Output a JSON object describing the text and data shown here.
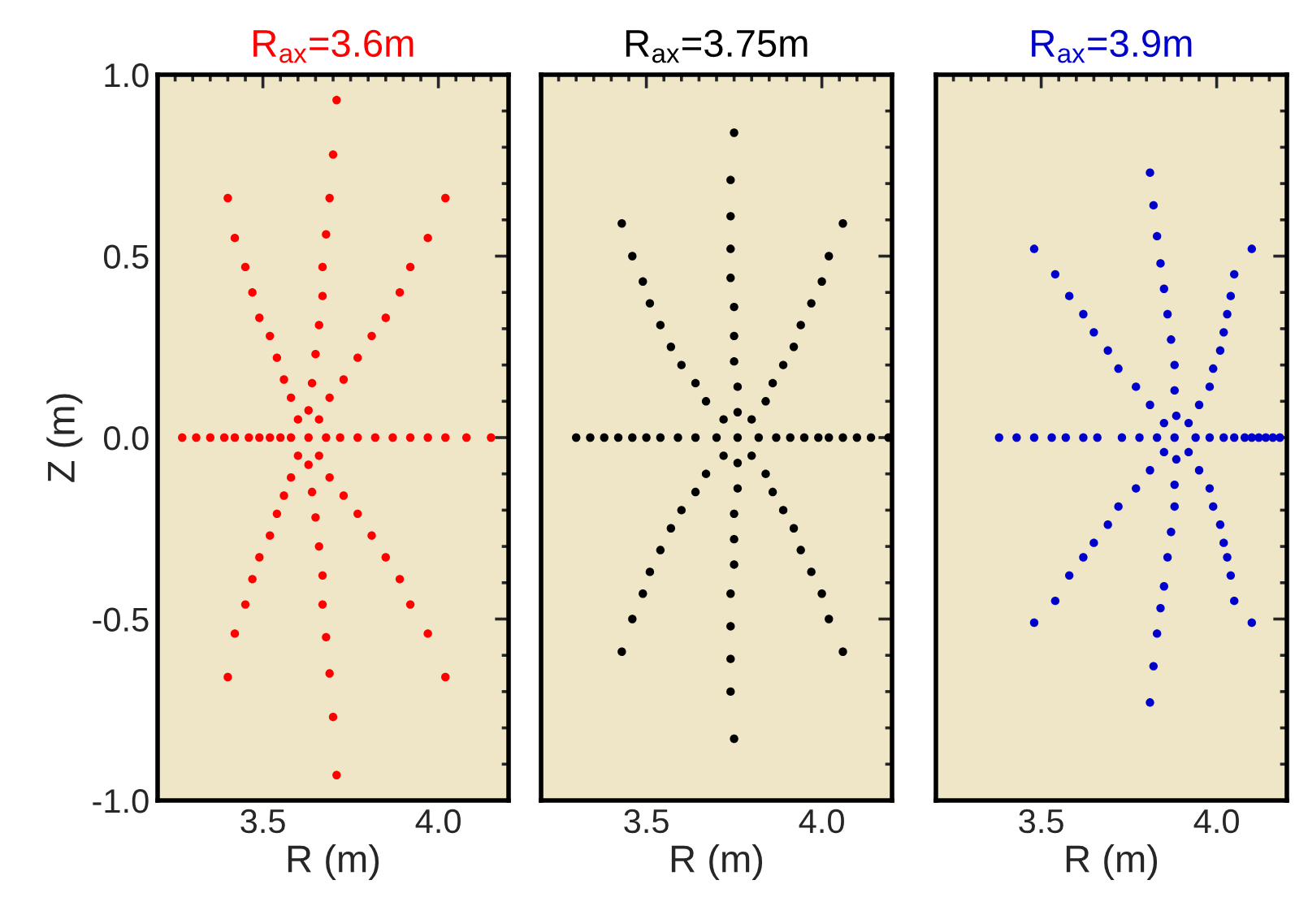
{
  "chart_data": [
    {
      "type": "scatter",
      "title": "R$_{ax}$=3.6m",
      "xlabel": "R (m)",
      "ylabel": "Z (m)",
      "marker": "circle",
      "xlim": [
        3.2,
        4.2
      ],
      "ylim": [
        -1.0,
        1.0
      ],
      "xticks": [
        {
          "value": 3.2,
          "label": null
        },
        {
          "value": 3.25,
          "label": null
        },
        {
          "value": 3.3,
          "label": null
        },
        {
          "value": 3.35,
          "label": null
        },
        {
          "value": 3.4,
          "label": null
        },
        {
          "value": 3.45,
          "label": null
        },
        {
          "value": 3.5,
          "label": "3.5"
        },
        {
          "value": 3.55,
          "label": null
        },
        {
          "value": 3.6,
          "label": null
        },
        {
          "value": 3.65,
          "label": null
        },
        {
          "value": 3.7,
          "label": null
        },
        {
          "value": 3.75,
          "label": null
        },
        {
          "value": 3.8,
          "label": null
        },
        {
          "value": 3.85,
          "label": null
        },
        {
          "value": 3.9,
          "label": null
        },
        {
          "value": 3.95,
          "label": null
        },
        {
          "value": 4.0,
          "label": "4.0"
        },
        {
          "value": 4.05,
          "label": null
        },
        {
          "value": 4.1,
          "label": null
        },
        {
          "value": 4.15,
          "label": null
        }
      ],
      "yticks": [
        {
          "value": -1.0,
          "label": "-1.0"
        },
        {
          "value": -0.9,
          "label": null
        },
        {
          "value": -0.8,
          "label": null
        },
        {
          "value": -0.7,
          "label": null
        },
        {
          "value": -0.6,
          "label": null
        },
        {
          "value": -0.5,
          "label": "-0.5"
        },
        {
          "value": -0.4,
          "label": null
        },
        {
          "value": -0.3,
          "label": null
        },
        {
          "value": -0.2,
          "label": null
        },
        {
          "value": -0.1,
          "label": null
        },
        {
          "value": 0.0,
          "label": "0.0"
        },
        {
          "value": 0.1,
          "label": null
        },
        {
          "value": 0.2,
          "label": null
        },
        {
          "value": 0.3,
          "label": null
        },
        {
          "value": 0.4,
          "label": null
        },
        {
          "value": 0.5,
          "label": "0.5"
        },
        {
          "value": 0.6,
          "label": null
        },
        {
          "value": 0.7,
          "label": null
        },
        {
          "value": 0.8,
          "label": null
        },
        {
          "value": 0.9,
          "label": null
        },
        {
          "value": 1.0,
          "label": "1.0"
        }
      ],
      "series": [
        {
          "color": "#ff0000",
          "x": [
            3.27,
            3.4,
            3.71,
            4.02,
            4.15,
            4.02,
            3.71,
            3.4,
            3.31,
            3.42,
            3.7,
            3.97,
            4.08,
            3.97,
            3.7,
            3.42,
            3.35,
            3.45,
            3.69,
            3.92,
            4.02,
            3.92,
            3.69,
            3.45,
            3.39,
            3.47,
            3.68,
            3.89,
            3.97,
            3.89,
            3.68,
            3.47,
            3.42,
            3.49,
            3.67,
            3.85,
            3.92,
            3.85,
            3.67,
            3.49,
            3.46,
            3.52,
            3.67,
            3.81,
            3.87,
            3.81,
            3.67,
            3.52,
            3.49,
            3.54,
            3.66,
            3.77,
            3.82,
            3.77,
            3.66,
            3.54,
            3.52,
            3.56,
            3.65,
            3.73,
            3.77,
            3.73,
            3.65,
            3.56,
            3.55,
            3.58,
            3.64,
            3.69,
            3.72,
            3.69,
            3.64,
            3.58,
            3.58,
            3.6,
            3.63,
            3.66,
            3.68,
            3.66,
            3.63,
            3.6,
            3.63
          ],
          "values": [
            0,
            0.66,
            0.93,
            0.66,
            0,
            -0.66,
            -0.93,
            -0.66,
            0,
            0.55,
            0.78,
            0.55,
            0,
            -0.54,
            -0.77,
            -0.54,
            0,
            0.47,
            0.66,
            0.47,
            0,
            -0.46,
            -0.65,
            -0.46,
            0,
            0.4,
            0.56,
            0.4,
            0,
            -0.39,
            -0.55,
            -0.39,
            0,
            0.33,
            0.47,
            0.33,
            0,
            -0.33,
            -0.46,
            -0.33,
            0,
            0.28,
            0.39,
            0.28,
            0,
            -0.27,
            -0.38,
            -0.27,
            0,
            0.22,
            0.31,
            0.22,
            0,
            -0.21,
            -0.3,
            -0.21,
            0,
            0.16,
            0.23,
            0.16,
            0,
            -0.16,
            -0.22,
            -0.16,
            0,
            0.11,
            0.15,
            0.11,
            0,
            -0.11,
            -0.15,
            -0.11,
            0,
            0.05,
            0.075,
            0.05,
            0,
            -0.05,
            -0.075,
            -0.05,
            0
          ]
        }
      ]
    },
    {
      "type": "scatter",
      "title": "R$_{ax}$=3.75m",
      "xlabel": "R (m)",
      "marker": "circle",
      "tick_labels": "x",
      "xlim": [
        3.2,
        4.2
      ],
      "ylim": [
        -1.0,
        1.0
      ],
      "xticks": [
        {
          "value": 3.2,
          "label": null
        },
        {
          "value": 3.25,
          "label": null
        },
        {
          "value": 3.3,
          "label": null
        },
        {
          "value": 3.35,
          "label": null
        },
        {
          "value": 3.4,
          "label": null
        },
        {
          "value": 3.45,
          "label": null
        },
        {
          "value": 3.5,
          "label": "3.5"
        },
        {
          "value": 3.55,
          "label": null
        },
        {
          "value": 3.6,
          "label": null
        },
        {
          "value": 3.65,
          "label": null
        },
        {
          "value": 3.7,
          "label": null
        },
        {
          "value": 3.75,
          "label": null
        },
        {
          "value": 3.8,
          "label": null
        },
        {
          "value": 3.85,
          "label": null
        },
        {
          "value": 3.9,
          "label": null
        },
        {
          "value": 3.95,
          "label": null
        },
        {
          "value": 4.0,
          "label": "4.0"
        },
        {
          "value": 4.05,
          "label": null
        },
        {
          "value": 4.1,
          "label": null
        },
        {
          "value": 4.15,
          "label": null
        }
      ],
      "yticks": [
        -1.0,
        {
          "value": -0.9,
          "label": null
        },
        {
          "value": -0.8,
          "label": null
        },
        {
          "value": -0.7,
          "label": null
        },
        {
          "value": -0.6,
          "label": null
        },
        -0.5,
        {
          "value": -0.4,
          "label": null
        },
        {
          "value": -0.3,
          "label": null
        },
        {
          "value": -0.2,
          "label": null
        },
        {
          "value": -0.1,
          "label": null
        },
        0.0,
        {
          "value": 0.1,
          "label": null
        },
        {
          "value": 0.2,
          "label": null
        },
        {
          "value": 0.3,
          "label": null
        },
        {
          "value": 0.4,
          "label": null
        },
        0.5,
        {
          "value": 0.6,
          "label": null
        },
        {
          "value": 0.7,
          "label": null
        },
        {
          "value": 0.8,
          "label": null
        },
        {
          "value": 0.9,
          "label": null
        },
        1.0
      ],
      "series": [
        {
          "color": "#000000",
          "x": [
            3.3,
            3.43,
            3.75,
            4.06,
            4.19,
            4.06,
            3.75,
            3.43,
            3.34,
            3.46,
            3.74,
            4.02,
            4.14,
            4.02,
            3.74,
            3.46,
            3.38,
            3.49,
            3.74,
            4.0,
            4.1,
            4.0,
            3.74,
            3.49,
            3.42,
            3.51,
            3.74,
            3.97,
            4.06,
            3.97,
            3.74,
            3.51,
            3.46,
            3.54,
            3.74,
            3.94,
            4.02,
            3.94,
            3.74,
            3.54,
            3.5,
            3.57,
            3.75,
            3.92,
            3.99,
            3.92,
            3.75,
            3.57,
            3.54,
            3.6,
            3.75,
            3.89,
            3.95,
            3.89,
            3.75,
            3.6,
            3.59,
            3.64,
            3.75,
            3.86,
            3.91,
            3.86,
            3.75,
            3.64,
            3.64,
            3.67,
            3.76,
            3.84,
            3.87,
            3.84,
            3.76,
            3.67,
            3.7,
            3.72,
            3.76,
            3.8,
            3.82,
            3.8,
            3.76,
            3.72,
            3.76
          ],
          "values": [
            0,
            0.59,
            0.84,
            0.59,
            0,
            -0.59,
            -0.83,
            -0.59,
            0,
            0.5,
            0.71,
            0.5,
            0,
            -0.5,
            -0.7,
            -0.5,
            0,
            0.43,
            0.61,
            0.43,
            0,
            -0.43,
            -0.61,
            -0.43,
            0,
            0.37,
            0.52,
            0.37,
            0,
            -0.37,
            -0.52,
            -0.37,
            0,
            0.31,
            0.44,
            0.31,
            0,
            -0.31,
            -0.43,
            -0.31,
            0,
            0.25,
            0.36,
            0.25,
            0,
            -0.25,
            -0.35,
            -0.25,
            0,
            0.2,
            0.28,
            0.2,
            0,
            -0.2,
            -0.28,
            -0.2,
            0,
            0.15,
            0.21,
            0.15,
            0,
            -0.15,
            -0.21,
            -0.15,
            0,
            0.1,
            0.14,
            0.1,
            0,
            -0.1,
            -0.14,
            -0.1,
            0,
            0.05,
            0.07,
            0.05,
            0,
            -0.05,
            -0.07,
            -0.05,
            0
          ]
        }
      ]
    },
    {
      "type": "scatter",
      "title": "R$_{ax}$=3.9m",
      "xlabel": "R (m)",
      "marker": "circle",
      "tick_labels": "x",
      "xlim": [
        3.2,
        4.2
      ],
      "ylim": [
        -1.0,
        1.0
      ],
      "xticks": [
        {
          "value": 3.2,
          "label": null
        },
        {
          "value": 3.25,
          "label": null
        },
        {
          "value": 3.3,
          "label": null
        },
        {
          "value": 3.35,
          "label": null
        },
        {
          "value": 3.4,
          "label": null
        },
        {
          "value": 3.45,
          "label": null
        },
        {
          "value": 3.5,
          "label": "3.5"
        },
        {
          "value": 3.55,
          "label": null
        },
        {
          "value": 3.6,
          "label": null
        },
        {
          "value": 3.65,
          "label": null
        },
        {
          "value": 3.7,
          "label": null
        },
        {
          "value": 3.75,
          "label": null
        },
        {
          "value": 3.8,
          "label": null
        },
        {
          "value": 3.85,
          "label": null
        },
        {
          "value": 3.9,
          "label": null
        },
        {
          "value": 3.95,
          "label": null
        },
        {
          "value": 4.0,
          "label": "4.0"
        },
        {
          "value": 4.05,
          "label": null
        },
        {
          "value": 4.1,
          "label": null
        },
        {
          "value": 4.15,
          "label": null
        }
      ],
      "yticks": [
        -1.0,
        {
          "value": -0.9,
          "label": null
        },
        {
          "value": -0.8,
          "label": null
        },
        {
          "value": -0.7,
          "label": null
        },
        {
          "value": -0.6,
          "label": null
        },
        -0.5,
        {
          "value": -0.4,
          "label": null
        },
        {
          "value": -0.3,
          "label": null
        },
        {
          "value": -0.2,
          "label": null
        },
        {
          "value": -0.1,
          "label": null
        },
        0.0,
        {
          "value": 0.1,
          "label": null
        },
        {
          "value": 0.2,
          "label": null
        },
        {
          "value": 0.3,
          "label": null
        },
        {
          "value": 0.4,
          "label": null
        },
        0.5,
        {
          "value": 0.6,
          "label": null
        },
        {
          "value": 0.7,
          "label": null
        },
        {
          "value": 0.8,
          "label": null
        },
        {
          "value": 0.9,
          "label": null
        },
        1.0
      ],
      "series": [
        {
          "color": "#0000cc",
          "x": [
            3.38,
            3.48,
            3.81,
            4.1,
            4.18,
            4.1,
            3.81,
            3.48,
            3.43,
            3.54,
            3.82,
            4.05,
            4.16,
            4.05,
            3.82,
            3.54,
            3.48,
            3.58,
            3.83,
            4.04,
            4.14,
            4.04,
            3.83,
            3.58,
            3.53,
            3.62,
            3.84,
            4.03,
            4.12,
            4.03,
            3.84,
            3.62,
            3.57,
            3.65,
            3.85,
            4.02,
            4.1,
            4.02,
            3.85,
            3.65,
            3.62,
            3.69,
            3.86,
            4.01,
            4.08,
            4.01,
            3.86,
            3.69,
            3.66,
            3.72,
            3.87,
            3.99,
            4.05,
            3.99,
            3.87,
            3.72,
            3.73,
            3.77,
            3.88,
            3.98,
            4.02,
            3.98,
            3.88,
            3.77,
            3.78,
            3.81,
            3.88,
            3.95,
            3.98,
            3.95,
            3.88,
            3.81,
            3.83,
            3.85,
            3.885,
            3.92,
            3.94,
            3.92,
            3.885,
            3.85,
            3.88
          ],
          "values": [
            0,
            0.52,
            0.73,
            0.52,
            0,
            -0.51,
            -0.73,
            -0.51,
            0,
            0.45,
            0.64,
            0.45,
            0,
            -0.45,
            -0.63,
            -0.45,
            0,
            0.39,
            0.555,
            0.39,
            0,
            -0.38,
            -0.54,
            -0.38,
            0,
            0.34,
            0.48,
            0.34,
            0,
            -0.33,
            -0.47,
            -0.33,
            0,
            0.29,
            0.41,
            0.29,
            0,
            -0.29,
            -0.41,
            -0.29,
            0,
            0.24,
            0.34,
            0.24,
            0,
            -0.24,
            -0.33,
            -0.24,
            0,
            0.19,
            0.27,
            0.19,
            0,
            -0.19,
            -0.26,
            -0.19,
            0,
            0.14,
            0.2,
            0.14,
            0,
            -0.14,
            -0.19,
            -0.14,
            0,
            0.09,
            0.13,
            0.09,
            0,
            -0.09,
            -0.13,
            -0.09,
            0,
            0.04,
            0.06,
            0.04,
            0,
            -0.04,
            -0.06,
            -0.04,
            0
          ]
        }
      ]
    }
  ]
}
